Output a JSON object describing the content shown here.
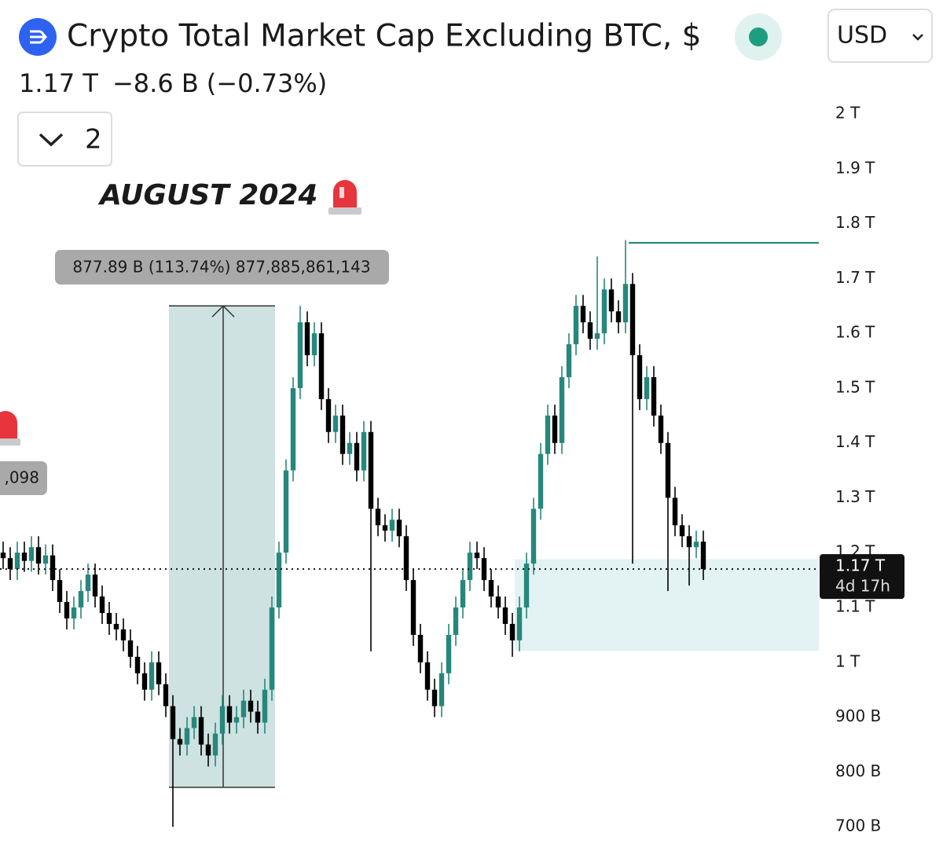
{
  "header": {
    "title": "Crypto Total Market Cap Excluding BTC, $",
    "price": "1.17 T",
    "change": "−8.6 B",
    "change_pct": "(−0.73%)",
    "interval_button": "2",
    "currency": "USD"
  },
  "chart_data": {
    "type": "candlestick",
    "open": [
      1200,
      1190,
      1170,
      1200,
      1185,
      1210,
      1180,
      1195,
      1150,
      1110,
      1080,
      1100,
      1130,
      1160,
      1120,
      1090,
      1070,
      1060,
      1040,
      1010,
      980,
      950,
      1000,
      960,
      920,
      860,
      850,
      880,
      900,
      850,
      830,
      870,
      920,
      890,
      900,
      930,
      910,
      890,
      950,
      1100,
      1200,
      1350,
      1500,
      1620,
      1560,
      1600,
      1480,
      1420,
      1450,
      1380,
      1400,
      1350,
      1420,
      1280,
      1250,
      1240,
      1260,
      1230,
      1150,
      1050,
      1000,
      950,
      920,
      980,
      1050,
      1100,
      1150,
      1200,
      1190,
      1150,
      1120,
      1100,
      1070,
      1040,
      1100,
      1180,
      1280,
      1380,
      1450,
      1400,
      1520,
      1580,
      1650,
      1620,
      1590,
      1600,
      1680,
      1640,
      1620,
      1690,
      1560,
      1480,
      1520,
      1450,
      1400,
      1300,
      1250,
      1230,
      1210,
      1220
    ],
    "high": [
      1220,
      1210,
      1220,
      1220,
      1230,
      1230,
      1215,
      1215,
      1170,
      1130,
      1120,
      1150,
      1180,
      1180,
      1140,
      1110,
      1090,
      1080,
      1060,
      1030,
      1000,
      1020,
      1020,
      980,
      940,
      880,
      900,
      920,
      920,
      870,
      890,
      940,
      940,
      920,
      950,
      950,
      930,
      970,
      1120,
      1220,
      1370,
      1520,
      1650,
      1640,
      1620,
      1620,
      1500,
      1470,
      1470,
      1420,
      1420,
      1440,
      1440,
      1300,
      1270,
      1280,
      1280,
      1250,
      1170,
      1070,
      1020,
      970,
      1000,
      1070,
      1120,
      1170,
      1220,
      1220,
      1210,
      1170,
      1140,
      1120,
      1090,
      1120,
      1200,
      1300,
      1400,
      1470,
      1470,
      1540,
      1600,
      1670,
      1670,
      1640,
      1740,
      1700,
      1700,
      1660,
      1770,
      1710,
      1580,
      1540,
      1540,
      1470,
      1420,
      1320,
      1270,
      1250,
      1240,
      1240
    ],
    "low": [
      1170,
      1150,
      1150,
      1165,
      1165,
      1160,
      1160,
      1130,
      1090,
      1060,
      1060,
      1080,
      1110,
      1100,
      1070,
      1050,
      1040,
      1020,
      990,
      960,
      930,
      930,
      940,
      900,
      700,
      830,
      830,
      860,
      830,
      810,
      810,
      850,
      870,
      870,
      880,
      890,
      870,
      870,
      930,
      1080,
      1180,
      1330,
      1480,
      1540,
      1540,
      1460,
      1400,
      1400,
      1360,
      1360,
      1330,
      1330,
      1020,
      1230,
      1220,
      1220,
      1210,
      1130,
      1030,
      980,
      930,
      900,
      900,
      960,
      1030,
      1080,
      1130,
      1170,
      1130,
      1100,
      1080,
      1050,
      1010,
      1020,
      1080,
      1160,
      1260,
      1360,
      1380,
      1380,
      1500,
      1560,
      1600,
      1570,
      1570,
      1580,
      1620,
      1600,
      1600,
      1180,
      1460,
      1460,
      1430,
      1380,
      1130,
      1230,
      1210,
      1140,
      1190,
      1150
    ],
    "close": [
      1190,
      1170,
      1200,
      1185,
      1210,
      1180,
      1195,
      1150,
      1110,
      1080,
      1100,
      1130,
      1160,
      1120,
      1090,
      1070,
      1060,
      1040,
      1010,
      980,
      950,
      1000,
      960,
      920,
      860,
      850,
      880,
      900,
      850,
      830,
      870,
      920,
      890,
      900,
      930,
      910,
      890,
      950,
      1100,
      1200,
      1350,
      1500,
      1620,
      1560,
      1600,
      1480,
      1420,
      1450,
      1380,
      1400,
      1350,
      1420,
      1280,
      1250,
      1240,
      1260,
      1230,
      1150,
      1050,
      1000,
      950,
      920,
      980,
      1050,
      1100,
      1150,
      1200,
      1190,
      1150,
      1120,
      1100,
      1070,
      1040,
      1100,
      1180,
      1280,
      1380,
      1450,
      1400,
      1520,
      1580,
      1650,
      1620,
      1590,
      1600,
      1680,
      1640,
      1620,
      1690,
      1560,
      1480,
      1520,
      1450,
      1400,
      1300,
      1250,
      1230,
      1210,
      1220,
      1170
    ],
    "up_color": "#26877c",
    "down_color": "#000000",
    "ylim": [
      650,
      2210
    ],
    "yticks": [
      {
        "value": 2000,
        "label": "2 T"
      },
      {
        "value": 1900,
        "label": "1.9 T"
      },
      {
        "value": 1800,
        "label": "1.8 T"
      },
      {
        "value": 1700,
        "label": "1.7 T"
      },
      {
        "value": 1600,
        "label": "1.6 T"
      },
      {
        "value": 1500,
        "label": "1.5 T"
      },
      {
        "value": 1400,
        "label": "1.4 T"
      },
      {
        "value": 1300,
        "label": "1.3 T"
      },
      {
        "value": 1200,
        "label": "1.2 T"
      },
      {
        "value": 1100,
        "label": "1.1 T"
      },
      {
        "value": 1000,
        "label": "1 T"
      },
      {
        "value": 900,
        "label": "900 B"
      },
      {
        "value": 800,
        "label": "800 B"
      },
      {
        "value": 700,
        "label": "700 B"
      }
    ],
    "annotations": {
      "headline": "AUGUST 2024",
      "measure_label": "877.89 B (113.74%) 877,885,861,143",
      "measure_range": [
        772,
        1650
      ],
      "partial_label": ",098",
      "resistance_level": 1765,
      "support_zone": [
        1021,
        1188
      ]
    },
    "last_price": {
      "value": 1170,
      "label": "1.17 T"
    },
    "countdown": "4d 17h"
  }
}
